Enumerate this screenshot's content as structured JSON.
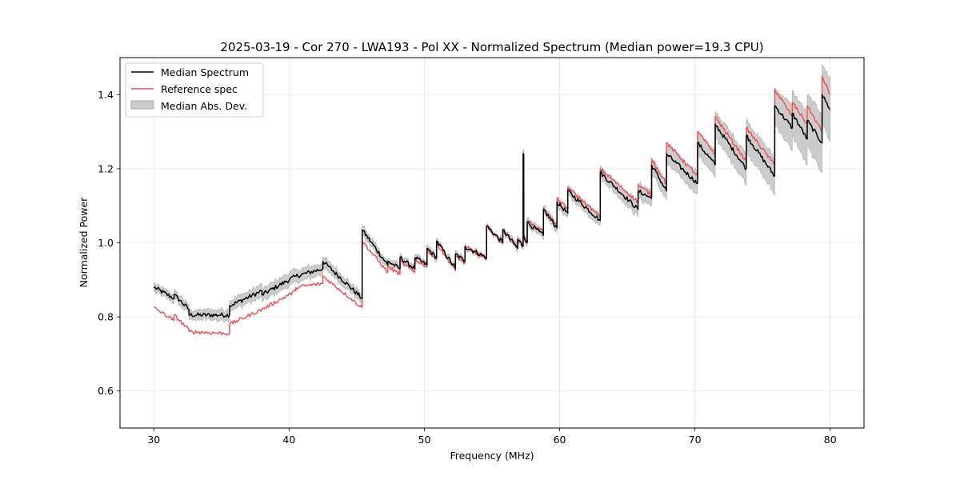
{
  "chart_data": {
    "type": "line",
    "title": "2025-03-19 - Cor 270 - LWA193 - Pol XX - Normalized Spectrum (Median power=19.3 CPU)",
    "xlabel": "Frequency (MHz)",
    "ylabel": "Normalized Power",
    "xlim": [
      27.5,
      82.5
    ],
    "ylim": [
      0.5,
      1.5
    ],
    "xticks": [
      30,
      40,
      50,
      60,
      70,
      80
    ],
    "xtick_labels": [
      "30",
      "40",
      "50",
      "60",
      "70",
      "80"
    ],
    "yticks": [
      0.6,
      0.8,
      1.0,
      1.2,
      1.4
    ],
    "ytick_labels": [
      "0.6",
      "0.8",
      "1.0",
      "1.2",
      "1.4"
    ],
    "grid": true,
    "legend_position": "upper-left",
    "legend": [
      {
        "label": "Median Spectrum",
        "kind": "line",
        "color": "#000000"
      },
      {
        "label": "Reference spec",
        "kind": "line",
        "color": "#ee5555"
      },
      {
        "label": "Median Abs. Dev.",
        "kind": "patch",
        "color": "#cccccc"
      }
    ],
    "series": [
      {
        "name": "Median Spectrum",
        "color": "#000000",
        "segments": [
          {
            "x0": 30.0,
            "x1": 31.5,
            "y0": 0.88,
            "y1": 0.85
          },
          {
            "x0": 31.5,
            "x1": 32.6,
            "y0": 0.86,
            "y1": 0.82
          },
          {
            "x0": 32.6,
            "x1": 35.6,
            "y0": 0.805,
            "y1": 0.805
          },
          {
            "x0": 35.6,
            "x1": 38.0,
            "y0": 0.83,
            "y1": 0.87
          },
          {
            "x0": 38.0,
            "x1": 40.5,
            "y0": 0.86,
            "y1": 0.91
          },
          {
            "x0": 40.5,
            "x1": 42.5,
            "y0": 0.91,
            "y1": 0.93
          },
          {
            "x0": 42.5,
            "x1": 45.4,
            "y0": 0.95,
            "y1": 0.85
          },
          {
            "x0": 45.4,
            "x1": 47.3,
            "y0": 1.035,
            "y1": 0.94
          },
          {
            "x0": 47.3,
            "x1": 48.2,
            "y0": 0.95,
            "y1": 0.93
          },
          {
            "x0": 48.2,
            "x1": 49.3,
            "y0": 0.96,
            "y1": 0.93
          },
          {
            "x0": 49.3,
            "x1": 50.2,
            "y0": 0.96,
            "y1": 0.94
          },
          {
            "x0": 50.2,
            "x1": 50.9,
            "y0": 0.985,
            "y1": 0.96
          },
          {
            "x0": 50.9,
            "x1": 52.3,
            "y0": 1.005,
            "y1": 0.93
          },
          {
            "x0": 52.3,
            "x1": 53.0,
            "y0": 0.97,
            "y1": 0.95
          },
          {
            "x0": 53.0,
            "x1": 54.6,
            "y0": 0.99,
            "y1": 0.96
          },
          {
            "x0": 54.6,
            "x1": 55.8,
            "y0": 1.045,
            "y1": 1.0
          },
          {
            "x0": 55.8,
            "x1": 56.9,
            "y0": 1.035,
            "y1": 0.985
          },
          {
            "x0": 56.9,
            "x1": 57.3,
            "y0": 1.01,
            "y1": 0.99
          },
          {
            "x0": 57.3,
            "x1": 57.35,
            "y0": 1.24,
            "y1": 1.24
          },
          {
            "x0": 57.35,
            "x1": 57.6,
            "y0": 1.02,
            "y1": 1.0
          },
          {
            "x0": 57.6,
            "x1": 58.8,
            "y0": 1.055,
            "y1": 1.02
          },
          {
            "x0": 58.8,
            "x1": 59.8,
            "y0": 1.09,
            "y1": 1.04
          },
          {
            "x0": 59.8,
            "x1": 60.6,
            "y0": 1.11,
            "y1": 1.08
          },
          {
            "x0": 60.6,
            "x1": 63.0,
            "y0": 1.14,
            "y1": 1.06
          },
          {
            "x0": 63.0,
            "x1": 65.8,
            "y0": 1.19,
            "y1": 1.09
          },
          {
            "x0": 65.8,
            "x1": 66.8,
            "y0": 1.14,
            "y1": 1.12
          },
          {
            "x0": 66.8,
            "x1": 67.9,
            "y0": 1.21,
            "y1": 1.14
          },
          {
            "x0": 67.9,
            "x1": 70.2,
            "y0": 1.24,
            "y1": 1.16
          },
          {
            "x0": 70.2,
            "x1": 71.5,
            "y0": 1.27,
            "y1": 1.21
          },
          {
            "x0": 71.5,
            "x1": 73.8,
            "y0": 1.32,
            "y1": 1.2
          },
          {
            "x0": 73.8,
            "x1": 75.9,
            "y0": 1.29,
            "y1": 1.18
          },
          {
            "x0": 75.9,
            "x1": 77.2,
            "y0": 1.37,
            "y1": 1.31
          },
          {
            "x0": 77.2,
            "x1": 78.3,
            "y0": 1.35,
            "y1": 1.28
          },
          {
            "x0": 78.3,
            "x1": 79.4,
            "y0": 1.33,
            "y1": 1.27
          },
          {
            "x0": 79.4,
            "x1": 80.0,
            "y0": 1.4,
            "y1": 1.36
          }
        ]
      },
      {
        "name": "Reference spec",
        "color": "#ee5555",
        "segments": [
          {
            "x0": 30.0,
            "x1": 31.5,
            "y0": 0.825,
            "y1": 0.79
          },
          {
            "x0": 31.5,
            "x1": 32.6,
            "y0": 0.805,
            "y1": 0.765
          },
          {
            "x0": 32.6,
            "x1": 35.6,
            "y0": 0.76,
            "y1": 0.755
          },
          {
            "x0": 35.6,
            "x1": 38.0,
            "y0": 0.78,
            "y1": 0.82
          },
          {
            "x0": 38.0,
            "x1": 40.5,
            "y0": 0.82,
            "y1": 0.87
          },
          {
            "x0": 40.5,
            "x1": 42.5,
            "y0": 0.88,
            "y1": 0.89
          },
          {
            "x0": 42.5,
            "x1": 45.4,
            "y0": 0.91,
            "y1": 0.825
          },
          {
            "x0": 45.4,
            "x1": 47.3,
            "y0": 1.005,
            "y1": 0.92
          },
          {
            "x0": 47.3,
            "x1": 48.2,
            "y0": 0.935,
            "y1": 0.915
          },
          {
            "x0": 48.2,
            "x1": 49.3,
            "y0": 0.95,
            "y1": 0.92
          },
          {
            "x0": 49.3,
            "x1": 50.2,
            "y0": 0.955,
            "y1": 0.935
          },
          {
            "x0": 50.2,
            "x1": 50.9,
            "y0": 0.98,
            "y1": 0.955
          },
          {
            "x0": 50.9,
            "x1": 52.3,
            "y0": 1.0,
            "y1": 0.925
          },
          {
            "x0": 52.3,
            "x1": 53.0,
            "y0": 0.965,
            "y1": 0.945
          },
          {
            "x0": 53.0,
            "x1": 54.6,
            "y0": 0.99,
            "y1": 0.955
          },
          {
            "x0": 54.6,
            "x1": 55.8,
            "y0": 1.045,
            "y1": 1.0
          },
          {
            "x0": 55.8,
            "x1": 56.9,
            "y0": 1.035,
            "y1": 0.985
          },
          {
            "x0": 56.9,
            "x1": 57.3,
            "y0": 1.01,
            "y1": 0.99
          },
          {
            "x0": 57.3,
            "x1": 57.35,
            "y0": 1.14,
            "y1": 1.14
          },
          {
            "x0": 57.35,
            "x1": 57.6,
            "y0": 1.02,
            "y1": 1.0
          },
          {
            "x0": 57.6,
            "x1": 58.8,
            "y0": 1.06,
            "y1": 1.03
          },
          {
            "x0": 58.8,
            "x1": 59.8,
            "y0": 1.095,
            "y1": 1.045
          },
          {
            "x0": 59.8,
            "x1": 60.6,
            "y0": 1.12,
            "y1": 1.09
          },
          {
            "x0": 60.6,
            "x1": 63.0,
            "y0": 1.15,
            "y1": 1.07
          },
          {
            "x0": 63.0,
            "x1": 65.8,
            "y0": 1.2,
            "y1": 1.11
          },
          {
            "x0": 65.8,
            "x1": 66.8,
            "y0": 1.155,
            "y1": 1.13
          },
          {
            "x0": 66.8,
            "x1": 67.9,
            "y0": 1.225,
            "y1": 1.16
          },
          {
            "x0": 67.9,
            "x1": 70.2,
            "y0": 1.27,
            "y1": 1.18
          },
          {
            "x0": 70.2,
            "x1": 71.5,
            "y0": 1.3,
            "y1": 1.24
          },
          {
            "x0": 71.5,
            "x1": 73.8,
            "y0": 1.34,
            "y1": 1.22
          },
          {
            "x0": 73.8,
            "x1": 75.9,
            "y0": 1.31,
            "y1": 1.21
          },
          {
            "x0": 75.9,
            "x1": 77.2,
            "y0": 1.415,
            "y1": 1.34
          },
          {
            "x0": 77.2,
            "x1": 78.3,
            "y0": 1.38,
            "y1": 1.32
          },
          {
            "x0": 78.3,
            "x1": 79.4,
            "y0": 1.37,
            "y1": 1.3
          },
          {
            "x0": 79.4,
            "x1": 80.0,
            "y0": 1.45,
            "y1": 1.4
          }
        ]
      }
    ],
    "band": {
      "name": "Median Abs. Dev.",
      "color": "#cccccc",
      "edge_color": "#aaaaaa",
      "about_series": "Median Spectrum",
      "halfwidth_points": [
        {
          "x": 30.0,
          "d": 0.01
        },
        {
          "x": 40.0,
          "d": 0.018
        },
        {
          "x": 45.0,
          "d": 0.012
        },
        {
          "x": 50.0,
          "d": 0.008
        },
        {
          "x": 55.0,
          "d": 0.006
        },
        {
          "x": 58.0,
          "d": 0.01
        },
        {
          "x": 63.0,
          "d": 0.014
        },
        {
          "x": 68.0,
          "d": 0.024
        },
        {
          "x": 72.0,
          "d": 0.035
        },
        {
          "x": 76.0,
          "d": 0.05
        },
        {
          "x": 80.0,
          "d": 0.085
        }
      ]
    }
  }
}
